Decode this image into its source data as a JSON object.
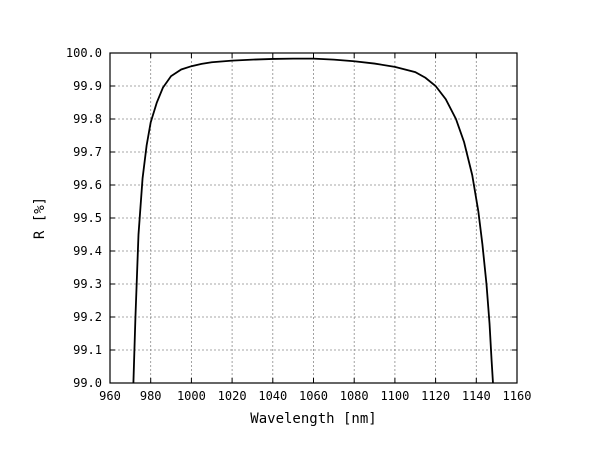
{
  "chart_data": {
    "type": "line",
    "title": "",
    "xlabel": "Wavelength [nm]",
    "ylabel": "R [%]",
    "xlim": [
      960,
      1160
    ],
    "ylim": [
      99.0,
      100.0
    ],
    "grid": true,
    "x_ticks": [
      960,
      980,
      1000,
      1020,
      1040,
      1060,
      1080,
      1100,
      1120,
      1140,
      1160
    ],
    "x_tick_labels": [
      "960",
      "980",
      "1000",
      "1020",
      "1040",
      "1060",
      "1080",
      "1100",
      "1120",
      "1140",
      "1160"
    ],
    "y_ticks": [
      99.0,
      99.1,
      99.2,
      99.3,
      99.4,
      99.5,
      99.6,
      99.7,
      99.8,
      99.9,
      100.0
    ],
    "y_tick_labels": [
      "99.0",
      "99.1",
      "99.2",
      "99.3",
      "99.4",
      "99.5",
      "99.6",
      "99.7",
      "99.8",
      "99.9",
      "100.0"
    ],
    "series": [
      {
        "x": [
          971.5,
          972.5,
          974,
          976,
          978,
          980,
          983,
          986,
          990,
          995,
          1000,
          1005,
          1010,
          1020,
          1030,
          1040,
          1050,
          1060,
          1070,
          1080,
          1090,
          1100,
          1110,
          1115,
          1120,
          1125,
          1130,
          1134,
          1138,
          1141,
          1143,
          1145,
          1146.5,
          1147.5,
          1148.2
        ],
        "y": [
          99.0,
          99.2,
          99.45,
          99.62,
          99.72,
          99.79,
          99.85,
          99.895,
          99.93,
          99.95,
          99.96,
          99.967,
          99.972,
          99.977,
          99.98,
          99.982,
          99.983,
          99.983,
          99.98,
          99.975,
          99.968,
          99.958,
          99.942,
          99.925,
          99.9,
          99.86,
          99.8,
          99.73,
          99.63,
          99.52,
          99.42,
          99.3,
          99.18,
          99.07,
          99.0
        ]
      }
    ]
  }
}
